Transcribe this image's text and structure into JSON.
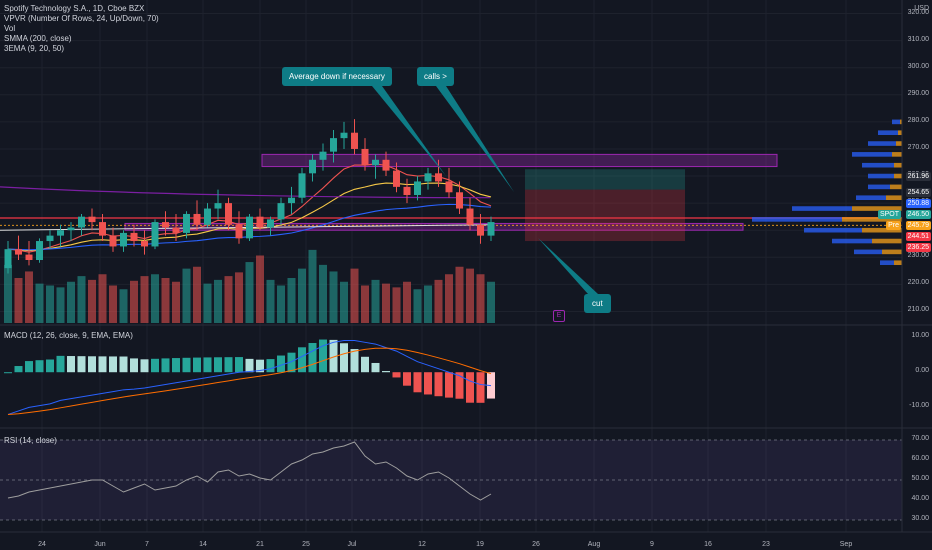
{
  "legend": {
    "symbol_line": "Spotify Technology S.A., 1D, Cboe BZX",
    "indicators": [
      "VPVR (Number Of Rows, 24, Up/Down, 70)",
      "Vol",
      "SMMA (200, close)",
      "3EMA (9, 20, 50)"
    ]
  },
  "macd_label": "MACD (12, 26, close, 9, EMA, EMA)",
  "rsi_label": "RSI (14, close)",
  "currency": "USD",
  "annotations": {
    "average_down": "Average down if necessary",
    "calls": "calls >",
    "cut": "cut",
    "earnings_marker": "E"
  },
  "price_axis": [
    "320.00",
    "310.00",
    "300.00",
    "290.00",
    "280.00",
    "270.00",
    "260.00",
    "250.00",
    "240.00",
    "230.00",
    "220.00",
    "210.00"
  ],
  "price_tags": [
    {
      "text": "261.96",
      "color": "#2a2e39"
    },
    {
      "text": "254.65",
      "color": "#2a2e39"
    },
    {
      "text": "250.88",
      "color": "#2962ff"
    },
    {
      "text": "SPOT",
      "color": "#26a69a"
    },
    {
      "text": "246.50",
      "color": "#26a69a"
    },
    {
      "text": "Pre",
      "color": "#f7a21b"
    },
    {
      "text": "245.79",
      "color": "#f7a21b"
    },
    {
      "text": "244.51",
      "color": "#f23645"
    },
    {
      "text": "236.25",
      "color": "#f23645"
    }
  ],
  "macd_axis": [
    "10.00",
    "0.00",
    "-10.00"
  ],
  "rsi_axis": [
    "70.00",
    "60.00",
    "50.00",
    "40.00",
    "30.00"
  ],
  "time_axis": [
    "24",
    "Jun",
    "7",
    "14",
    "21",
    "25",
    "Jul",
    "12",
    "19",
    "26",
    "Aug",
    "9",
    "16",
    "23",
    "Sep"
  ],
  "colors": {
    "up": "#26a69a",
    "down": "#ef5350",
    "teal_callout": "#0e7c86",
    "purple_zone": "#9c27b0",
    "background": "#131722"
  },
  "chart_data": {
    "type": "candlestick",
    "ohlc": [
      [
        226,
        236,
        224,
        233
      ],
      [
        233,
        238,
        229,
        231
      ],
      [
        231,
        236,
        227,
        229
      ],
      [
        229,
        237,
        228,
        236
      ],
      [
        236,
        240,
        233,
        238
      ],
      [
        238,
        242,
        234,
        240
      ],
      [
        240,
        243,
        236,
        241
      ],
      [
        241,
        246,
        238,
        245
      ],
      [
        245,
        248,
        240,
        243
      ],
      [
        243,
        246,
        236,
        238
      ],
      [
        238,
        241,
        232,
        234
      ],
      [
        234,
        240,
        232,
        239
      ],
      [
        239,
        242,
        234,
        236
      ],
      [
        236,
        240,
        231,
        234
      ],
      [
        234,
        244,
        233,
        243
      ],
      [
        243,
        247,
        238,
        241
      ],
      [
        241,
        246,
        236,
        239
      ],
      [
        239,
        247,
        237,
        246
      ],
      [
        246,
        251,
        240,
        242
      ],
      [
        242,
        250,
        241,
        248
      ],
      [
        248,
        255,
        244,
        250
      ],
      [
        250,
        252,
        240,
        242
      ],
      [
        242,
        247,
        235,
        237
      ],
      [
        237,
        246,
        236,
        245
      ],
      [
        245,
        248,
        240,
        241
      ],
      [
        241,
        245,
        238,
        244
      ],
      [
        244,
        252,
        242,
        250
      ],
      [
        250,
        256,
        246,
        252
      ],
      [
        252,
        263,
        250,
        261
      ],
      [
        261,
        268,
        258,
        266
      ],
      [
        266,
        272,
        262,
        269
      ],
      [
        269,
        277,
        265,
        274
      ],
      [
        274,
        280,
        270,
        276
      ],
      [
        276,
        281,
        268,
        270
      ],
      [
        270,
        274,
        262,
        264
      ],
      [
        264,
        268,
        259,
        266
      ],
      [
        266,
        269,
        260,
        262
      ],
      [
        262,
        265,
        254,
        256
      ],
      [
        256,
        259,
        250,
        253
      ],
      [
        253,
        260,
        251,
        258
      ],
      [
        258,
        263,
        255,
        261
      ],
      [
        261,
        266,
        256,
        258
      ],
      [
        258,
        263,
        252,
        254
      ],
      [
        254,
        258,
        246,
        248
      ],
      [
        248,
        252,
        240,
        242
      ],
      [
        242,
        246,
        235,
        238
      ],
      [
        238,
        245,
        236,
        243
      ]
    ],
    "volume": [
      62,
      48,
      55,
      42,
      40,
      38,
      44,
      50,
      46,
      52,
      40,
      36,
      45,
      50,
      52,
      48,
      44,
      58,
      60,
      42,
      46,
      50,
      54,
      65,
      72,
      46,
      40,
      48,
      58,
      78,
      62,
      55,
      44,
      58,
      40,
      46,
      42,
      38,
      44,
      36,
      40,
      46,
      52,
      60,
      58,
      52,
      44
    ],
    "macd": [
      -12,
      -11,
      -10,
      -9.5,
      -9,
      -8,
      -7.5,
      -7,
      -6.5,
      -6,
      -5.5,
      -5,
      -4.8,
      -4.5,
      -4,
      -3.5,
      -3,
      -2.5,
      -2,
      -1.5,
      -1,
      -0.5,
      0,
      0.2,
      0.5,
      1,
      2,
      3,
      4.5,
      6,
      7.5,
      8.5,
      9,
      9,
      8.5,
      8,
      7,
      6,
      4.5,
      3,
      2,
      1,
      0,
      -1,
      -2.5,
      -3.5,
      -3.8
    ],
    "rsi": [
      41,
      42,
      44,
      45,
      46,
      47,
      48,
      49,
      50,
      50,
      47,
      44,
      46,
      48,
      45,
      46,
      47,
      50,
      52,
      49,
      54,
      55,
      52,
      53,
      51,
      50,
      54,
      58,
      60,
      63,
      64,
      66,
      67,
      69,
      62,
      58,
      59,
      56,
      52,
      50,
      53,
      54,
      51,
      47,
      43,
      40,
      43
    ],
    "price_range": [
      205,
      325
    ],
    "macd_range": [
      -15,
      12
    ],
    "rsi_range": [
      25,
      75
    ]
  }
}
